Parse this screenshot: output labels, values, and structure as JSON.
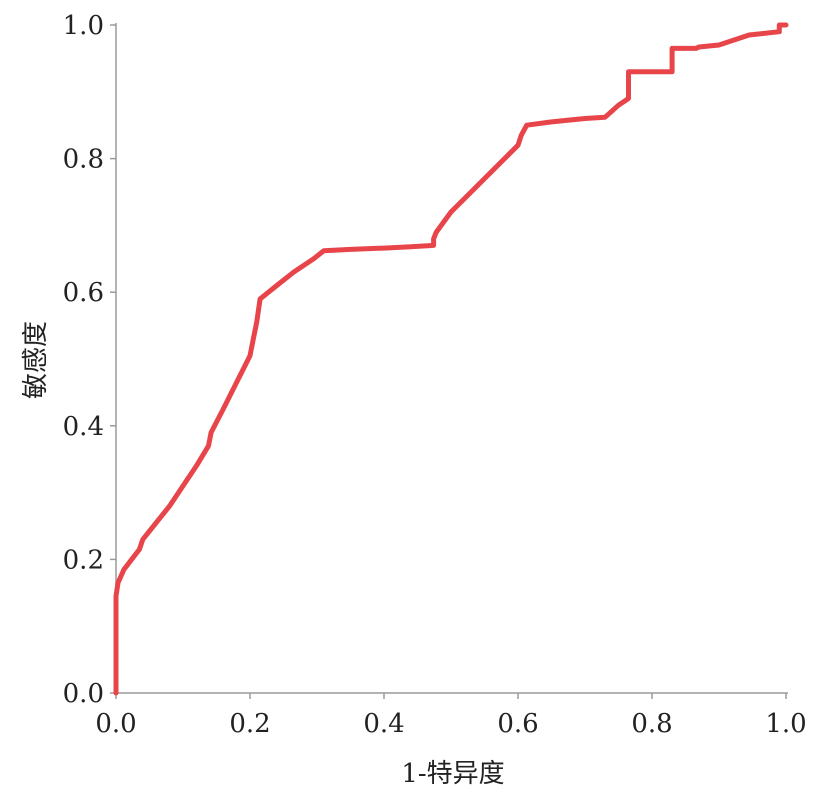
{
  "chart_data": {
    "type": "line",
    "title": "",
    "xlabel": "1-特异度",
    "ylabel": "敏感度",
    "xlim": [
      0,
      1
    ],
    "ylim": [
      0,
      1
    ],
    "xticks": [
      "0.0",
      "0.2",
      "0.4",
      "0.6",
      "0.8",
      "1.0"
    ],
    "yticks": [
      "0.0",
      "0.2",
      "0.4",
      "0.6",
      "0.8",
      "1.0"
    ],
    "grid": false,
    "series": [
      {
        "color": "#e8454b",
        "x": [
          0.0,
          0.0,
          0.003,
          0.012,
          0.035,
          0.04,
          0.06,
          0.08,
          0.1,
          0.12,
          0.138,
          0.142,
          0.16,
          0.18,
          0.2,
          0.205,
          0.21,
          0.215,
          0.24,
          0.265,
          0.295,
          0.31,
          0.35,
          0.4,
          0.44,
          0.474,
          0.474,
          0.478,
          0.5,
          0.55,
          0.6,
          0.605,
          0.613,
          0.65,
          0.7,
          0.73,
          0.75,
          0.765,
          0.765,
          0.8,
          0.83,
          0.83,
          0.866,
          0.87,
          0.9,
          0.945,
          0.99,
          0.99,
          1.0
        ],
        "y": [
          0.0,
          0.145,
          0.165,
          0.185,
          0.215,
          0.23,
          0.255,
          0.28,
          0.31,
          0.34,
          0.37,
          0.39,
          0.425,
          0.465,
          0.505,
          0.53,
          0.555,
          0.59,
          0.61,
          0.63,
          0.65,
          0.662,
          0.664,
          0.666,
          0.668,
          0.67,
          0.68,
          0.69,
          0.72,
          0.77,
          0.82,
          0.835,
          0.85,
          0.855,
          0.86,
          0.862,
          0.88,
          0.89,
          0.93,
          0.93,
          0.93,
          0.965,
          0.965,
          0.967,
          0.97,
          0.985,
          0.99,
          1.0,
          1.0
        ]
      }
    ]
  }
}
